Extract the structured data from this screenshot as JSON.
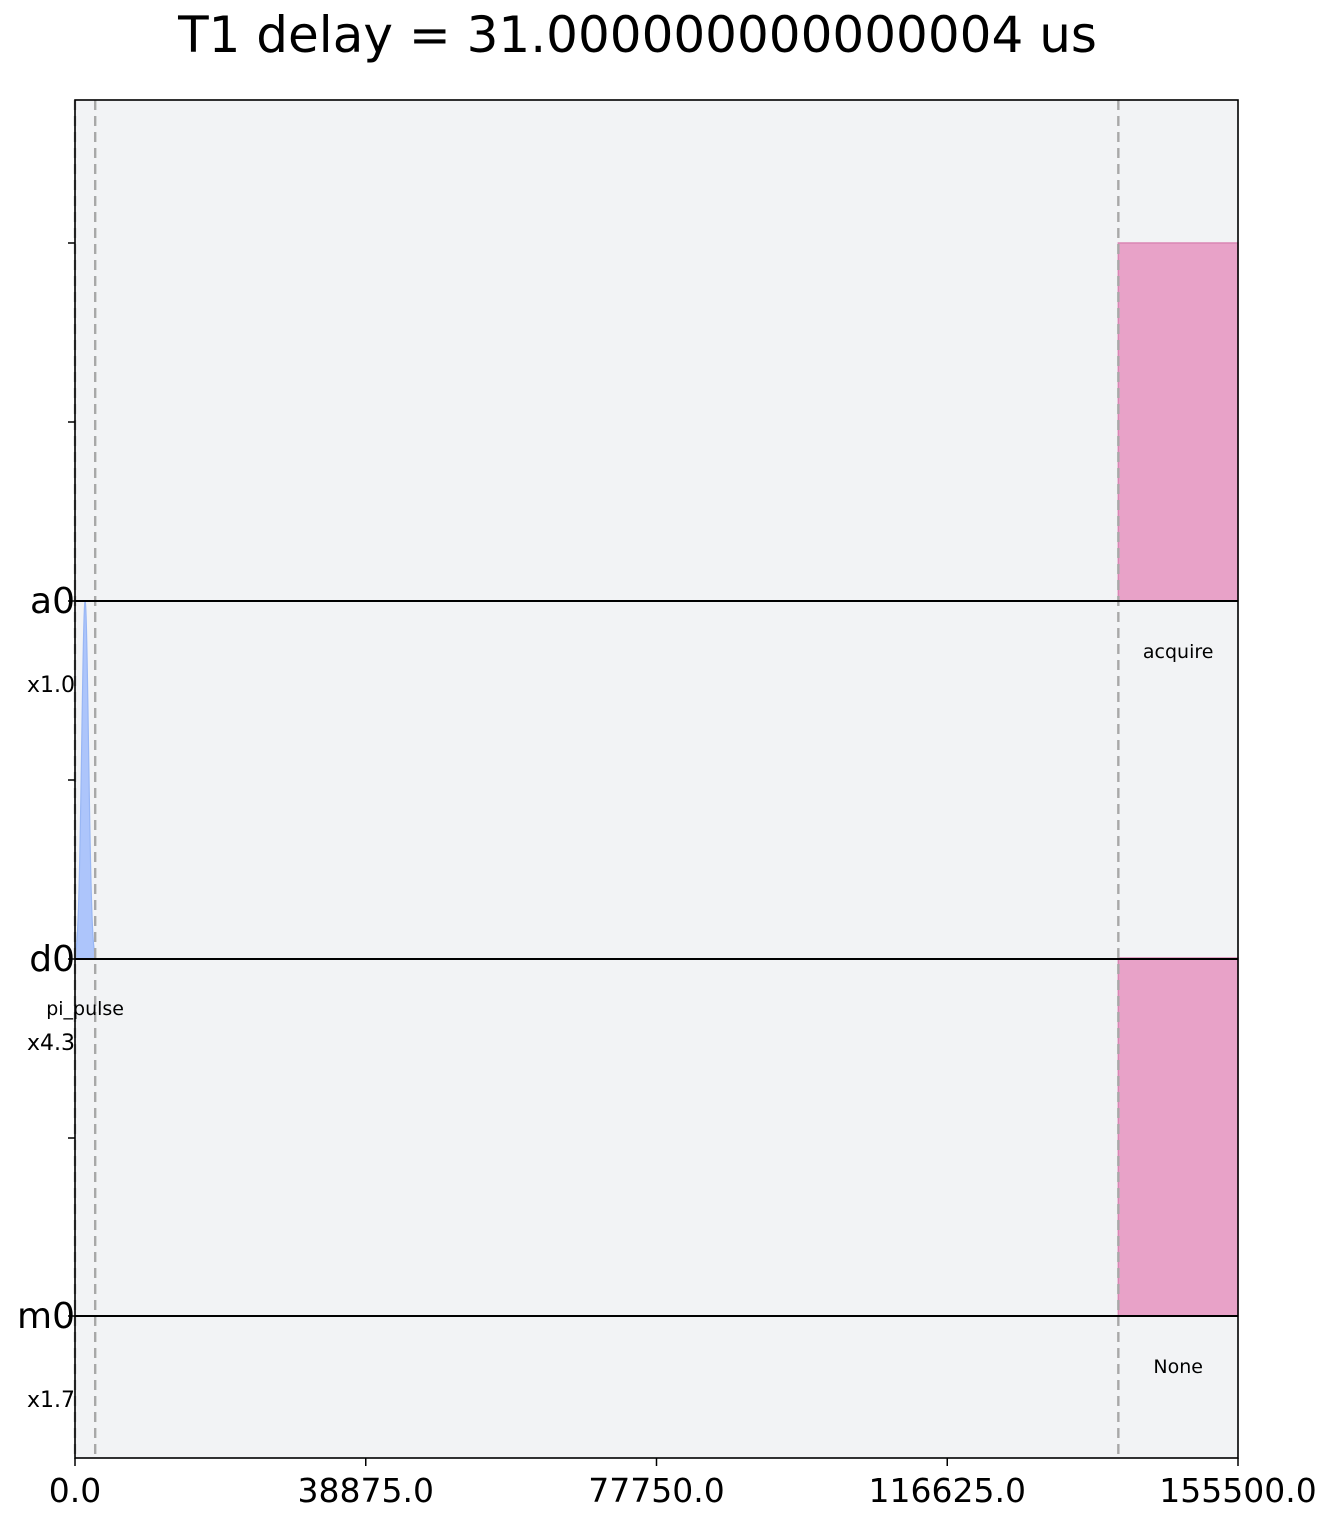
{
  "chart_data": {
    "type": "area",
    "title": "T1 delay = 31.000000000000004 us",
    "xlabel": "",
    "ylabel": "",
    "xlim": [
      0,
      155500
    ],
    "x_ticks": [
      "0.0",
      "38875.0",
      "77750.0",
      "116625.0",
      "155500.0"
    ],
    "x_tick_values": [
      0,
      38875,
      77750,
      116625,
      155500
    ],
    "grid": false,
    "channels": [
      {
        "name": "a0",
        "scale": "x1.0"
      },
      {
        "name": "d0",
        "scale": "x4.3"
      },
      {
        "name": "m0",
        "scale": "x1.7"
      }
    ],
    "instructions": [
      {
        "channel": "d0",
        "label": "pi_pulse",
        "type": "gaussian",
        "start": 0,
        "end": 2700,
        "amplitude": 1.0,
        "color": "#a6c1fc"
      },
      {
        "channel": "a0",
        "label": "acquire",
        "type": "box",
        "start": 139500,
        "end": 155500,
        "amplitude": 1.0,
        "color": "#e8a2c8"
      },
      {
        "channel": "m0",
        "label": "None",
        "type": "box",
        "start": 139500,
        "end": 155500,
        "amplitude": 1.0,
        "color": "#e8a2c8"
      }
    ],
    "barriers": [
      0,
      2700,
      139500
    ]
  }
}
